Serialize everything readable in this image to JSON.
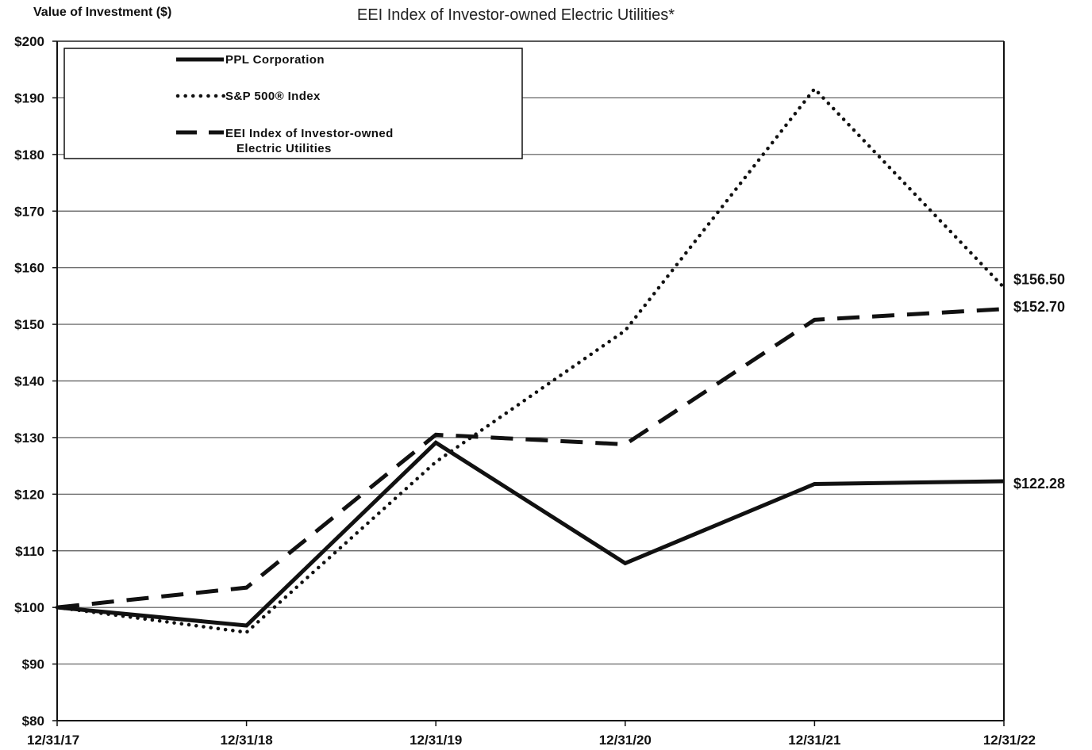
{
  "chart_data": {
    "type": "line",
    "title_lines": [
      "EEI Index of Investor-owned Electric Utilities*"
    ],
    "ylabel": "Value of Investment ($)",
    "xlabel": "",
    "categories": [
      "12/31/17",
      "12/31/18",
      "12/31/19",
      "12/31/20",
      "12/31/21",
      "12/31/22"
    ],
    "ylim": [
      80,
      200
    ],
    "ytick_step": 10,
    "ytick_labels": [
      "$80",
      "$90",
      "$100",
      "$110",
      "$120",
      "$130",
      "$140",
      "$150",
      "$160",
      "$170",
      "$180",
      "$190",
      "$200"
    ],
    "grid": true,
    "legend_position": "top-left",
    "series": [
      {
        "name": "PPL Corporation",
        "style": "solid",
        "values": [
          100,
          96.8,
          129.1,
          107.8,
          121.8,
          122.28
        ],
        "end_label": "$122.28"
      },
      {
        "name": "S&P 500® Index",
        "style": "dotted",
        "values": [
          100,
          95.6,
          125.7,
          148.9,
          191.6,
          156.5
        ],
        "end_label": "$156.50"
      },
      {
        "name": "EEI Index of Investor-owned Electric Utilities",
        "legend_lines": [
          "EEI Index of Investor-owned",
          "Electric Utilities"
        ],
        "style": "dashed",
        "values": [
          100,
          103.5,
          130.5,
          128.8,
          150.8,
          152.7
        ],
        "end_label": "$152.70"
      }
    ]
  }
}
